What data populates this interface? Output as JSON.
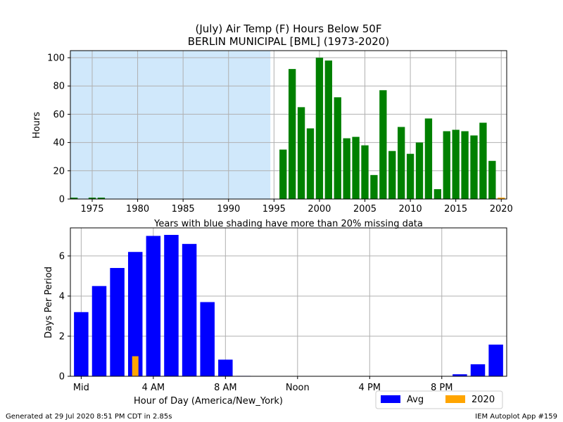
{
  "title_line1": "(July) Air Temp (F) Hours Below 50F",
  "title_line2": "BERLIN MUNICIPAL [BML] (1973-2020)",
  "note": "Years with blue shading have more than 20% missing data",
  "footer_left": "Generated at 29 Jul 2020 8:51 PM CDT in 2.85s",
  "footer_right": "IEM Autoplot App #159",
  "colors": {
    "history": "#008000",
    "current": "#FFA500",
    "avg": "#0000FF",
    "missing_shade": "#D0E8FB",
    "grid": "#b0b0b0"
  },
  "chart_data": [
    {
      "type": "bar",
      "ylabel": "Hours",
      "xlim": [
        1972.6,
        2020.6
      ],
      "ylim": [
        0,
        105
      ],
      "xticks": [
        1975,
        1980,
        1985,
        1990,
        1995,
        2000,
        2005,
        2010,
        2015,
        2020
      ],
      "yticks": [
        0,
        20,
        40,
        60,
        80,
        100
      ],
      "grid": true,
      "missing_shade_range": [
        1972.6,
        1994.6
      ],
      "x": [
        1973,
        1974,
        1975,
        1976,
        1977,
        1978,
        1979,
        1980,
        1981,
        1982,
        1983,
        1984,
        1985,
        1986,
        1987,
        1988,
        1989,
        1990,
        1991,
        1992,
        1993,
        1994,
        1995,
        1996,
        1997,
        1998,
        1999,
        2000,
        2001,
        2002,
        2003,
        2004,
        2005,
        2006,
        2007,
        2008,
        2009,
        2010,
        2011,
        2012,
        2013,
        2014,
        2015,
        2016,
        2017,
        2018,
        2019,
        2020
      ],
      "values": [
        1,
        0,
        1,
        1,
        0,
        0,
        0,
        0,
        0,
        0,
        0,
        0,
        0,
        0,
        0,
        0,
        0,
        0,
        0,
        0,
        0,
        0,
        0,
        35,
        92,
        65,
        50,
        100,
        98,
        72,
        43,
        44,
        38,
        17,
        77,
        34,
        51,
        32,
        40,
        57,
        7,
        48,
        49,
        48,
        45,
        54,
        27,
        1
      ],
      "current_year": 2020
    },
    {
      "type": "bar",
      "xlabel": "Hour of Day (America/New_York)",
      "ylabel": "Days Per Period",
      "xlim": [
        -0.6,
        23.6
      ],
      "ylim": [
        0,
        7.4
      ],
      "xticks": [
        0,
        4,
        8,
        12,
        16,
        20
      ],
      "xtick_labels": [
        "Mid",
        "4 AM",
        "8 AM",
        "Noon",
        "4 PM",
        "8 PM"
      ],
      "yticks": [
        0,
        2,
        4,
        6
      ],
      "grid": true,
      "legend_position": "below-right",
      "series": [
        {
          "name": "Avg",
          "values": [
            3.2,
            4.5,
            5.4,
            6.2,
            7.0,
            7.05,
            6.6,
            3.7,
            0.83,
            0.02,
            0,
            0,
            0,
            0,
            0,
            0,
            0,
            0,
            0,
            0,
            0,
            0.1,
            0.6,
            1.58
          ]
        },
        {
          "name": "2020",
          "values": [
            0,
            0,
            0,
            1,
            0,
            0,
            0,
            0,
            0,
            0,
            0,
            0,
            0,
            0,
            0,
            0,
            0,
            0,
            0,
            0,
            0,
            0,
            0,
            0
          ]
        }
      ]
    }
  ]
}
